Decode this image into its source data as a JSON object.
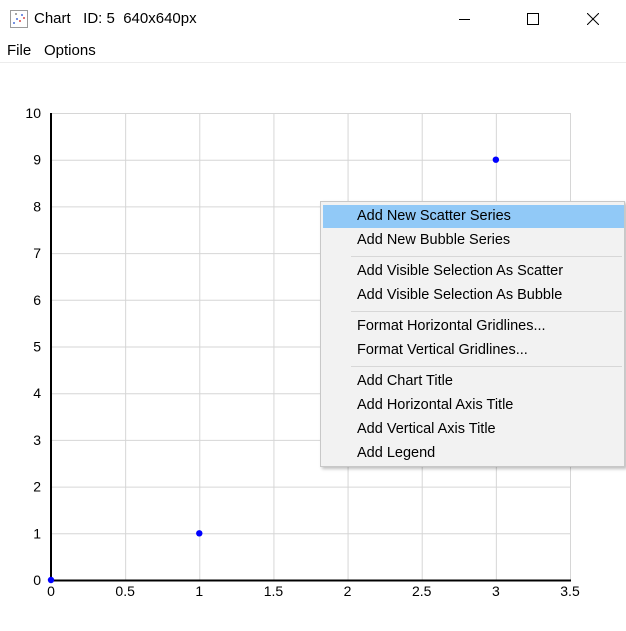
{
  "window": {
    "title": "Chart   ID: 5  640x640px"
  },
  "icons": {
    "app": "scatter-chart-icon",
    "minimize": "minimize-icon",
    "maximize": "maximize-icon",
    "close": "close-icon"
  },
  "menubar": {
    "items": [
      "File",
      "Options"
    ]
  },
  "context_menu": {
    "groups": [
      [
        "Add New Scatter Series",
        "Add New Bubble Series"
      ],
      [
        "Add Visible Selection As Scatter",
        "Add Visible Selection As Bubble"
      ],
      [
        "Format Horizontal Gridlines...",
        "Format Vertical Gridlines..."
      ],
      [
        "Add Chart Title",
        "Add Horizontal Axis Title",
        "Add Vertical Axis Title",
        "Add Legend"
      ]
    ],
    "highlighted": "Add New Scatter Series",
    "highlight_color": "#91c9f7"
  },
  "chart_data": {
    "type": "scatter",
    "x": [
      0,
      1,
      3
    ],
    "y": [
      0,
      1,
      9
    ],
    "xlim": [
      0,
      3.5
    ],
    "ylim": [
      0,
      10
    ],
    "xticks": [
      "0",
      "0.5",
      "1",
      "1.5",
      "2",
      "2.5",
      "3",
      "3.5"
    ],
    "yticks": [
      "0",
      "1",
      "2",
      "3",
      "4",
      "5",
      "6",
      "7",
      "8",
      "9",
      "10"
    ],
    "grid": true,
    "marker_color": "#0000ff",
    "title": "",
    "xlabel": "",
    "ylabel": ""
  }
}
